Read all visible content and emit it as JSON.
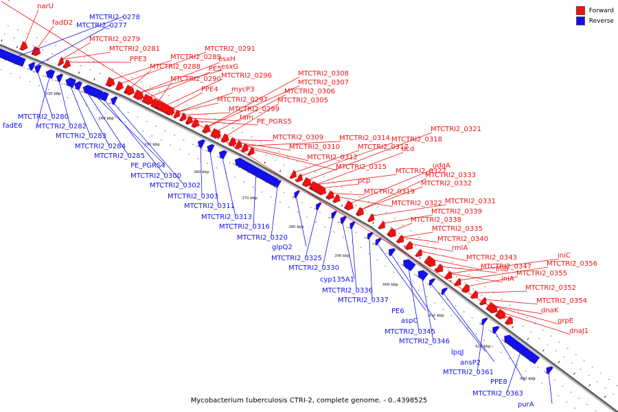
{
  "legend": {
    "forward_label": "Forward",
    "reverse_label": "Reverse",
    "forward_color": "#ee1111",
    "reverse_color": "#1111ee"
  },
  "caption": "Mycobacterium tuberculosis CTRI-2, complete genome. - 0..4398525",
  "ticks": [
    "330 kbp",
    "340 kbp",
    "350 kbp",
    "360 kbp",
    "370 kbp",
    "380 kbp",
    "390 kbp",
    "400 kbp",
    "410 kbp",
    "420 kbp",
    "430 kbp"
  ],
  "forward_genes": [
    "narU",
    "fadD2",
    "MTCTRI2_0279",
    "MTCTRI2_0281",
    "PPE3",
    "MTCTRI2_0289",
    "MTCTRI2_0291",
    "MTCTRI2_0288",
    "esxH",
    "esxG",
    "PE5",
    "MTCTRI2_0290",
    "MTCTRI2_0296",
    "PPE4",
    "mycP3",
    "MTCTRI2_0297",
    "MTCTRI2_0299",
    "tam",
    "PE_PGRS5",
    "MTCTRI2_0308",
    "MTCTRI2_0307",
    "MTCTRI2_0306",
    "MTCTRI2_0305",
    "MTCTRI2_0309",
    "MTCTRI2_0310",
    "MTCTRI2_0312",
    "MTCTRI2_0314",
    "MTCTRI2_0315",
    "MTCTRI2_0317",
    "MTCTRI2_0318",
    "MTCTRI2_0321",
    "dcd",
    "MTCTRI2_0327",
    "pcp",
    "MTCTRI2_0319",
    "MTCTRI2_0322",
    "udgA",
    "MTCTRI2_0333",
    "MTCTRI2_0332",
    "MTCTRI2_0331",
    "MTCTRI2_0339",
    "MTCTRI2_0338",
    "MTCTRI2_0335",
    "MTCTRI2_0340",
    "rmlA",
    "MTCTRI2_0343",
    "MTCTRI2_0347",
    "iniB",
    "iniA",
    "iniC",
    "MTCTRI2_0356",
    "MTCTRI2_0355",
    "MTCTRI2_0352",
    "MTCTRI2_0354",
    "dnaK",
    "grpE",
    "dnaJ1",
    "hspR"
  ],
  "reverse_genes": [
    "MTCTRI2_0278",
    "MTCTRI2_0277",
    "MTCTRI2_0280",
    "fadE6",
    "MTCTRI2_0282",
    "MTCTRI2_0283",
    "MTCTRI2_0284",
    "MTCTRI2_0285",
    "PE_PGRS4",
    "MTCTRI2_0300",
    "MTCTRI2_0302",
    "MTCTRI2_0303",
    "MTCTRI2_0311",
    "MTCTRI2_0313",
    "MTCTRI2_0316",
    "MTCTRI2_0320",
    "glpQ2",
    "MTCTRI2_0325",
    "MTCTRI2_0330",
    "cyp135A1",
    "MTCTRI2_0336",
    "MTCTRI2_0337",
    "PE6",
    "aspC",
    "MTCTRI2_0345",
    "MTCTRI2_0346",
    "lpqJ",
    "ansP2",
    "MTCTRI2_0361",
    "PPE8",
    "MTCTRI2_0363",
    "purA"
  ]
}
